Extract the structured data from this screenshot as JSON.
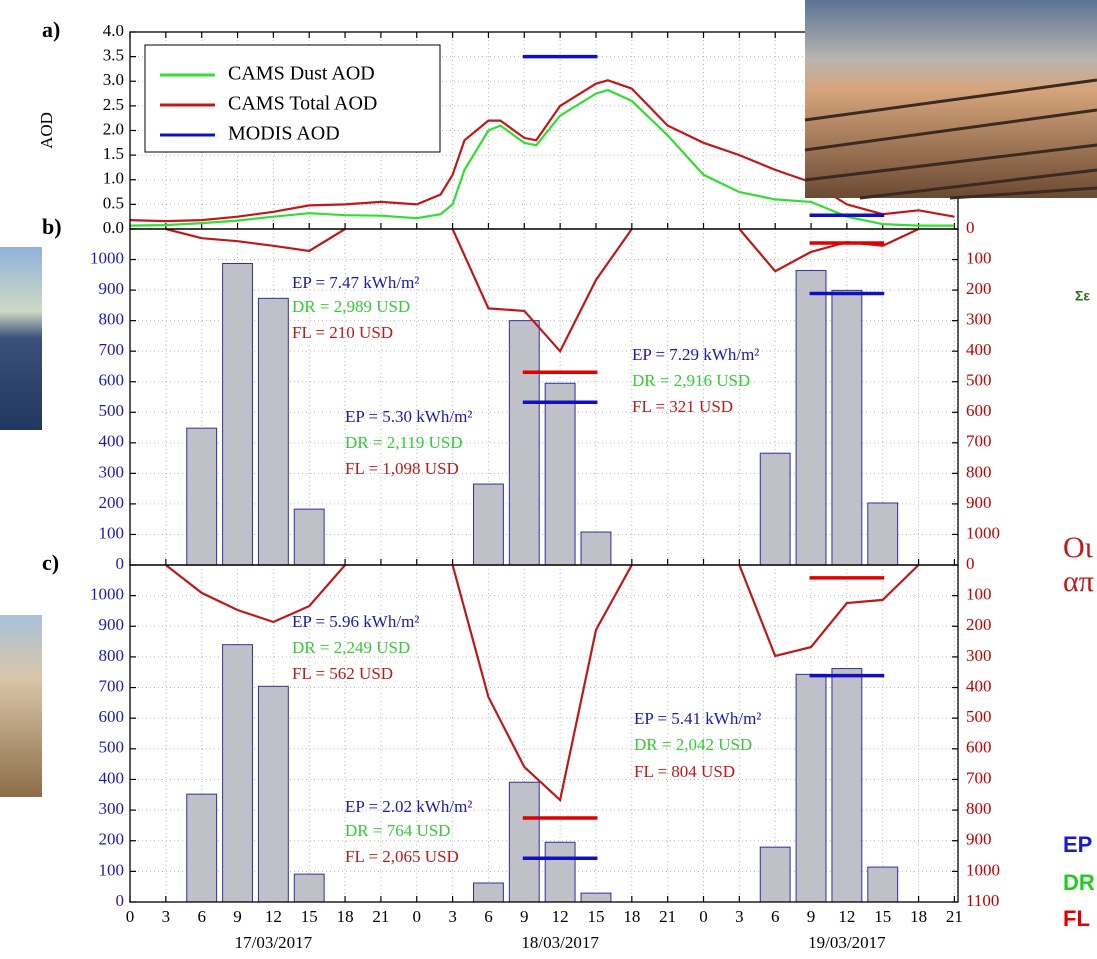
{
  "chart_data": [
    {
      "type": "line",
      "panel_label": "a)",
      "ylabel": "AOD",
      "xlim": [
        0,
        69.3
      ],
      "ylim": [
        0,
        4
      ],
      "yticks": [
        {
          "value": 0,
          "label": "0.0"
        },
        0.5,
        {
          "value": 1,
          "label": "1.0"
        },
        1.5,
        {
          "value": 2,
          "label": "2.0"
        },
        2.5,
        {
          "value": 3,
          "label": "3.0"
        },
        3.5,
        {
          "value": 4,
          "label": "4.0"
        }
      ],
      "ytick_color": "#000000",
      "grid": true,
      "legend": "upper left",
      "series": [
        {
          "type": "line",
          "name": "CAMS Dust AOD",
          "color": "#33dd33",
          "x": [
            0,
            3,
            6,
            9,
            12,
            15,
            18,
            21,
            24,
            26,
            27,
            28,
            30,
            31,
            33,
            34,
            36,
            39,
            40,
            42,
            45,
            48,
            51,
            54,
            57,
            60,
            63,
            66,
            69
          ],
          "values": [
            0.07,
            0.08,
            0.12,
            0.17,
            0.25,
            0.32,
            0.28,
            0.27,
            0.22,
            0.3,
            0.5,
            1.2,
            2.0,
            2.1,
            1.75,
            1.7,
            2.3,
            2.75,
            2.82,
            2.6,
            1.9,
            1.1,
            0.75,
            0.6,
            0.55,
            0.25,
            0.1,
            0.07,
            0.07
          ]
        },
        {
          "type": "line",
          "name": "CAMS Total AOD",
          "color": "#c01818",
          "x": [
            0,
            3,
            6,
            9,
            12,
            15,
            18,
            21,
            24,
            26,
            27,
            28,
            30,
            31,
            33,
            34,
            36,
            39,
            40,
            42,
            45,
            48,
            51,
            54,
            57,
            60,
            63,
            66,
            69
          ],
          "values": [
            0.18,
            0.16,
            0.18,
            0.25,
            0.35,
            0.48,
            0.5,
            0.55,
            0.5,
            0.7,
            1.1,
            1.8,
            2.2,
            2.2,
            1.85,
            1.8,
            2.5,
            2.95,
            3.02,
            2.85,
            2.1,
            1.75,
            1.5,
            1.2,
            0.95,
            0.5,
            0.3,
            0.38,
            0.25
          ]
        },
        {
          "type": "segment",
          "name": "MODIS AOD",
          "color": "#1010c0",
          "x": [
            36,
            60
          ],
          "values": [
            3.5,
            0.28
          ]
        }
      ]
    },
    {
      "type": "bar",
      "panel_label": "b)",
      "xlim": [
        0,
        69.3
      ],
      "ylim": [
        0,
        1100
      ],
      "yticks": [
        0,
        100,
        200,
        300,
        400,
        500,
        600,
        700,
        800,
        900,
        1000
      ],
      "ytick_color": "#1a1ab0",
      "y2lim": [
        1100,
        0
      ],
      "y2ticks": [
        0,
        100,
        200,
        300,
        400,
        500,
        600,
        700,
        800,
        900,
        1000
      ],
      "y2tick_color": "#c00000",
      "grid": true,
      "series": [
        {
          "type": "bar",
          "color": "#c0c0c8",
          "x": [
            6,
            9,
            12,
            15,
            30,
            33,
            36,
            39,
            54,
            57,
            60,
            63
          ],
          "values": [
            448,
            987,
            873,
            183,
            265,
            800,
            595,
            108,
            366,
            964,
            899,
            203
          ]
        },
        {
          "type": "line",
          "axis": "y2",
          "color": "#c01818",
          "x": [
            3,
            6,
            9,
            12,
            15,
            18,
            null,
            27,
            30,
            33,
            36,
            39,
            42,
            null,
            51,
            54,
            57,
            60,
            63,
            66
          ],
          "values": [
            0,
            30,
            40,
            55,
            72,
            0,
            null,
            0,
            260,
            268,
            400,
            167,
            0,
            null,
            0,
            138,
            75,
            43,
            55,
            0
          ]
        },
        {
          "type": "segment",
          "color": "#1010c0",
          "x": [
            36,
            60
          ],
          "values": [
            533,
            889
          ]
        },
        {
          "type": "segment",
          "axis": "y2",
          "color": "#e00000",
          "x": [
            36,
            60
          ],
          "values": [
            469,
            46
          ]
        }
      ],
      "annotations": [
        {
          "text": "EP = 7.47 kWh/m²",
          "color": "#1a1ab0"
        },
        {
          "text": "DR = 2,989 USD",
          "color": "#33cc33"
        },
        {
          "text": "FL =  210 USD",
          "color": "#c01818"
        },
        {
          "text": "EP = 5.30 kWh/m²",
          "color": "#1a1ab0"
        },
        {
          "text": "DR = 2,119 USD",
          "color": "#33cc33"
        },
        {
          "text": "FL =  1,098 USD",
          "color": "#c01818"
        },
        {
          "text": "EP = 7.29 kWh/m²",
          "color": "#1a1ab0"
        },
        {
          "text": "DR = 2,916 USD",
          "color": "#33cc33"
        },
        {
          "text": "FL =  321 USD",
          "color": "#c01818"
        }
      ]
    },
    {
      "type": "bar",
      "panel_label": "c)",
      "xlim": [
        0,
        69.3
      ],
      "xticks": [
        0,
        3,
        6,
        9,
        12,
        15,
        18,
        21,
        {
          "value": 24,
          "label": "0"
        },
        {
          "value": 27,
          "label": "3"
        },
        {
          "value": 30,
          "label": "6"
        },
        {
          "value": 33,
          "label": "9"
        },
        {
          "value": 36,
          "label": "12"
        },
        {
          "value": 39,
          "label": "15"
        },
        {
          "value": 42,
          "label": "18"
        },
        {
          "value": 45,
          "label": "21"
        },
        {
          "value": 48,
          "label": "0"
        },
        {
          "value": 51,
          "label": "3"
        },
        {
          "value": 54,
          "label": "6"
        },
        {
          "value": 57,
          "label": "9"
        },
        {
          "value": 60,
          "label": "12"
        },
        {
          "value": 63,
          "label": "15"
        },
        {
          "value": 66,
          "label": "18"
        },
        {
          "value": 69,
          "label": "21"
        }
      ],
      "xgroups": [
        {
          "value": 12,
          "label": "17/03/2017"
        },
        {
          "value": 36,
          "label": "18/03/2017"
        },
        {
          "value": 60,
          "label": "19/03/2017"
        }
      ],
      "ylim": [
        0,
        1100
      ],
      "yticks": [
        0,
        100,
        200,
        300,
        400,
        500,
        600,
        700,
        800,
        900,
        1000
      ],
      "ytick_color": "#1a1ab0",
      "y2lim": [
        1100,
        0
      ],
      "y2ticks": [
        0,
        100,
        200,
        300,
        400,
        500,
        600,
        700,
        800,
        900,
        1000,
        1100
      ],
      "y2tick_color": "#c00000",
      "grid": true,
      "series": [
        {
          "type": "bar",
          "color": "#c0c0c8",
          "x": [
            6,
            9,
            12,
            15,
            30,
            33,
            36,
            39,
            54,
            57,
            60,
            63
          ],
          "values": [
            352,
            840,
            704,
            91,
            62,
            391,
            195,
            29,
            179,
            743,
            762,
            114
          ]
        },
        {
          "type": "line",
          "axis": "y2",
          "color": "#c01818",
          "x": [
            3,
            6,
            9,
            12,
            15,
            18,
            null,
            27,
            30,
            33,
            36,
            39,
            42,
            null,
            51,
            54,
            57,
            60,
            63,
            66
          ],
          "values": [
            0,
            91,
            147,
            186,
            134,
            0,
            null,
            0,
            431,
            659,
            767,
            212,
            0,
            null,
            0,
            297,
            268,
            124,
            114,
            0
          ]
        },
        {
          "type": "segment",
          "color": "#1010c0",
          "x": [
            36,
            60
          ],
          "values": [
            143,
            739
          ]
        },
        {
          "type": "segment",
          "axis": "y2",
          "color": "#e00000",
          "x": [
            36,
            60
          ],
          "values": [
            826,
            42
          ]
        }
      ],
      "annotations": [
        {
          "text": "EP = 5.96 kWh/m²",
          "color": "#1a1ab0"
        },
        {
          "text": "DR = 2,249 USD",
          "color": "#33cc33"
        },
        {
          "text": "FL =  562 USD",
          "color": "#c01818"
        },
        {
          "text": "EP = 2.02 kWh/m²",
          "color": "#1a1ab0"
        },
        {
          "text": "DR = 764 USD",
          "color": "#33cc33"
        },
        {
          "text": "FL =  2,065 USD",
          "color": "#c01818"
        },
        {
          "text": "EP = 5.41 kWh/m²",
          "color": "#1a1ab0"
        },
        {
          "text": "DR = 2,042 USD",
          "color": "#33cc33"
        },
        {
          "text": "FL =  804 USD",
          "color": "#c01818"
        }
      ]
    }
  ],
  "slide_fragments": [
    "Σε",
    "Οι",
    "απ",
    "EP",
    "DR",
    "FL"
  ]
}
